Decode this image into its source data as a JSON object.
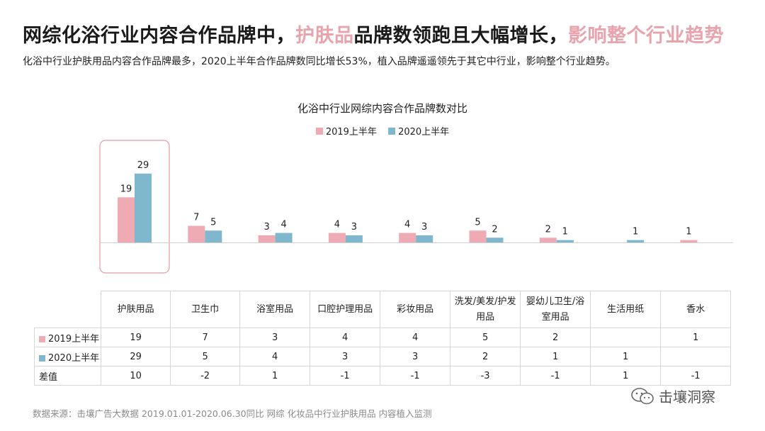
{
  "header": {
    "title_part1": "网综化浴行业内容合作品牌中，",
    "title_highlight1": "护肤品",
    "title_part2": "品牌数领跑且大幅增长，",
    "title_highlight2": "影响整个行业趋势",
    "subtitle": "化浴中行业护肤用品内容合作品牌最多，2020上半年合作品牌数同比增长53%，植入品牌遥遥领先于其它中行业，影响整个行业趋势。"
  },
  "colors": {
    "series_2019": "#efabb3",
    "series_2020": "#7fb7cc",
    "highlight_box": "#e89aa6",
    "title_highlight": "#e8a3ad"
  },
  "chart_data": {
    "type": "bar",
    "title": "化浴中行业网综内容合作品牌数对比",
    "categories": [
      "护肤用品",
      "卫生巾",
      "浴室用品",
      "口腔护理用品",
      "彩妆用品",
      "洗发/美发/护发用品",
      "婴幼儿卫生/浴室用品",
      "生活用纸",
      "香水"
    ],
    "series": [
      {
        "name": "2019上半年",
        "values": [
          19,
          7,
          3,
          4,
          4,
          5,
          2,
          null,
          1
        ]
      },
      {
        "name": "2020上半年",
        "values": [
          29,
          5,
          4,
          3,
          3,
          2,
          1,
          1,
          null
        ]
      }
    ],
    "ylim": [
      0,
      29
    ],
    "legend": "top-center",
    "grid": false,
    "highlighted_category": "护肤用品"
  },
  "table": {
    "headers": [
      "护肤用品",
      "卫生巾",
      "浴室用品",
      "口腔护理用品",
      "彩妆用品",
      "洗发/美发/护发用品",
      "婴幼儿卫生/浴室用品",
      "生活用纸",
      "香水"
    ],
    "rows": [
      {
        "label": "2019上半年",
        "swatch": "series_2019",
        "values": [
          "19",
          "7",
          "3",
          "4",
          "4",
          "5",
          "2",
          "",
          "1"
        ]
      },
      {
        "label": "2020上半年",
        "swatch": "series_2020",
        "values": [
          "29",
          "5",
          "4",
          "3",
          "3",
          "2",
          "1",
          "1",
          ""
        ]
      },
      {
        "label": "差值",
        "swatch": null,
        "values": [
          "10",
          "-2",
          "1",
          "-1",
          "-1",
          "-3",
          "-1",
          "1",
          "-1"
        ]
      }
    ]
  },
  "footer": {
    "source": "数据来源：击壤广告大数据 2019.01.01-2020.06.30同比 网综 化妆品中行业护肤用品 内容植入监测",
    "brand": "击壤洞察"
  }
}
